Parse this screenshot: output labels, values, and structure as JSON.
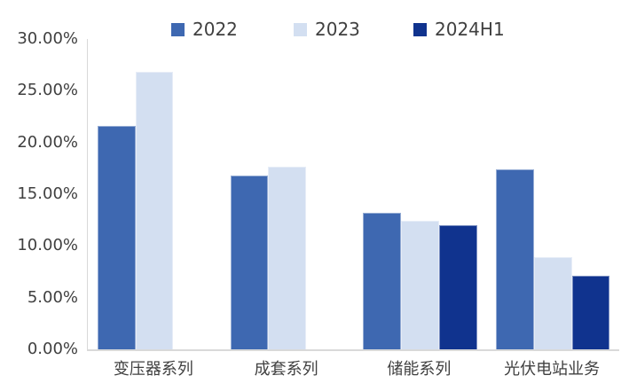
{
  "legend": {
    "position": "top",
    "items": [
      {
        "label": "2022",
        "color": "#3E68B1",
        "x": 193
      },
      {
        "label": "2023",
        "color": "#D3DFF1",
        "x": 331
      },
      {
        "label": "2024H1",
        "color": "#10338E",
        "x": 466
      }
    ]
  },
  "chart_data": {
    "type": "bar",
    "title": "",
    "categories": [
      "变压器系列",
      "成套系列",
      "储能系列",
      "光伏电站业务"
    ],
    "series": [
      {
        "name": "2022",
        "color": "#3E68B1",
        "values": [
          21.6,
          16.8,
          13.2,
          17.4
        ]
      },
      {
        "name": "2023",
        "color": "#D3DFF1",
        "values": [
          26.8,
          17.7,
          12.4,
          8.9
        ]
      },
      {
        "name": "2024H1",
        "color": "#10338E",
        "values": [
          null,
          null,
          12.0,
          7.1
        ]
      }
    ],
    "ylabel": "",
    "xlabel": "",
    "ylim": [
      0,
      30
    ],
    "y_tick_step": 5,
    "y_tick_labels": [
      "30.00%",
      "25.00%",
      "20.00%",
      "15.00%",
      "10.00%",
      "5.00%",
      "0.00%"
    ],
    "value_unit": "percent",
    "grid": false,
    "legend_position": "top"
  },
  "colors": {
    "background": "#ffffff",
    "axis_line": "#d9d9d9",
    "axis_text": "#404040"
  }
}
